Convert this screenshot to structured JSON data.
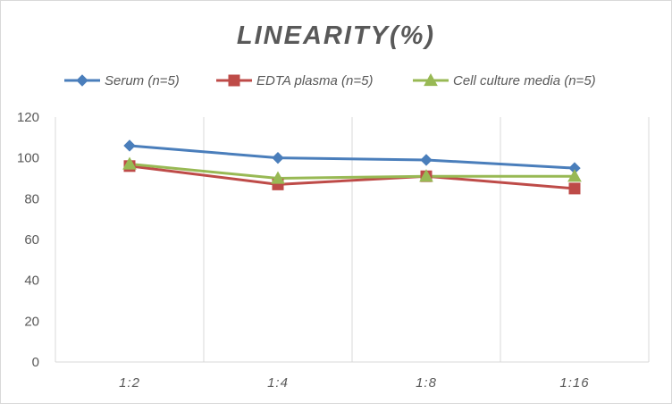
{
  "chart_data": {
    "type": "line",
    "title": "LINEARITY(%)",
    "xlabel": "",
    "ylabel": "",
    "categories": [
      "1:2",
      "1:4",
      "1:8",
      "1:16"
    ],
    "ylim": [
      0,
      120
    ],
    "yticks": [
      0,
      20,
      40,
      60,
      80,
      100,
      120
    ],
    "grid": "vertical",
    "legend_position": "top",
    "series": [
      {
        "name": "Serum (n=5)",
        "values": [
          106,
          100,
          99,
          95
        ],
        "color": "#4a7ebb",
        "marker": "diamond"
      },
      {
        "name": "EDTA plasma (n=5)",
        "values": [
          96,
          87,
          91,
          85
        ],
        "color": "#be4b48",
        "marker": "square"
      },
      {
        "name": "Cell culture media (n=5)",
        "values": [
          97,
          90,
          91,
          91
        ],
        "color": "#98b954",
        "marker": "triangle"
      }
    ]
  }
}
